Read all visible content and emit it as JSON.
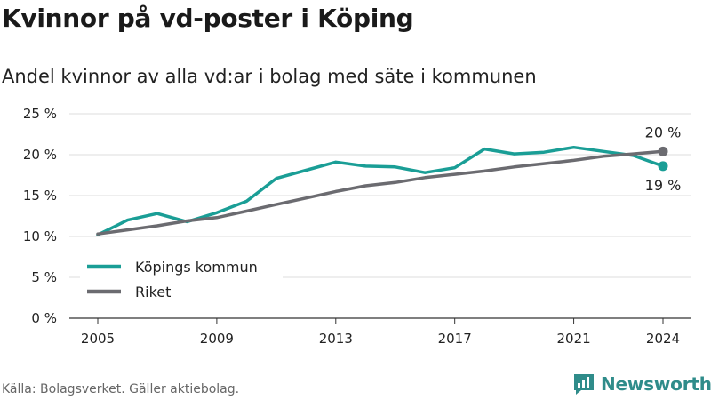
{
  "title": "Kvinnor på vd-poster i Köping",
  "subtitle": "Andel kvinnor av alla vd:ar i bolag med säte i kommunen",
  "source": "Källa: Bolagsverket. Gäller aktiebolag.",
  "brand": {
    "name": "Newsworthy",
    "icon": "newsworthy-logo-icon"
  },
  "colors": {
    "koping": "#1a9e96",
    "riket": "#6b6b70",
    "grid": "#dddddd"
  },
  "chart_data": {
    "type": "line",
    "title": "Kvinnor på vd-poster i Köping",
    "subtitle": "Andel kvinnor av alla vd:ar i bolag med säte i kommunen",
    "xlabel": "",
    "ylabel": "",
    "xlim": [
      2005,
      2024
    ],
    "ylim": [
      0,
      25
    ],
    "grid": true,
    "legend": "bottom-left",
    "x_ticks": [
      2005,
      2009,
      2013,
      2017,
      2021,
      2024
    ],
    "x_tick_labels": [
      "2005",
      "2009",
      "2013",
      "2017",
      "2021",
      "2024"
    ],
    "y_ticks": [
      0,
      5,
      10,
      15,
      20,
      25
    ],
    "y_tick_labels": [
      "0 %",
      "5 %",
      "10 %",
      "15 %",
      "20 %",
      "25 %"
    ],
    "x": [
      2005,
      2006,
      2007,
      2008,
      2009,
      2010,
      2011,
      2012,
      2013,
      2014,
      2015,
      2016,
      2017,
      2018,
      2019,
      2020,
      2021,
      2022,
      2023,
      2024
    ],
    "series": [
      {
        "name": "Köpings kommun",
        "color": "#1a9e96",
        "values": [
          10.2,
          12.0,
          12.8,
          11.8,
          12.9,
          14.3,
          17.1,
          18.1,
          19.1,
          18.6,
          18.5,
          17.8,
          18.4,
          20.7,
          20.1,
          20.3,
          20.9,
          20.4,
          19.9,
          18.6
        ],
        "end_label": "19 %"
      },
      {
        "name": "Riket",
        "color": "#6b6b70",
        "values": [
          10.3,
          10.8,
          11.3,
          11.9,
          12.3,
          13.1,
          13.9,
          14.7,
          15.5,
          16.2,
          16.6,
          17.2,
          17.6,
          18.0,
          18.5,
          18.9,
          19.3,
          19.8,
          20.1,
          20.4
        ],
        "end_label": "20 %"
      }
    ]
  }
}
